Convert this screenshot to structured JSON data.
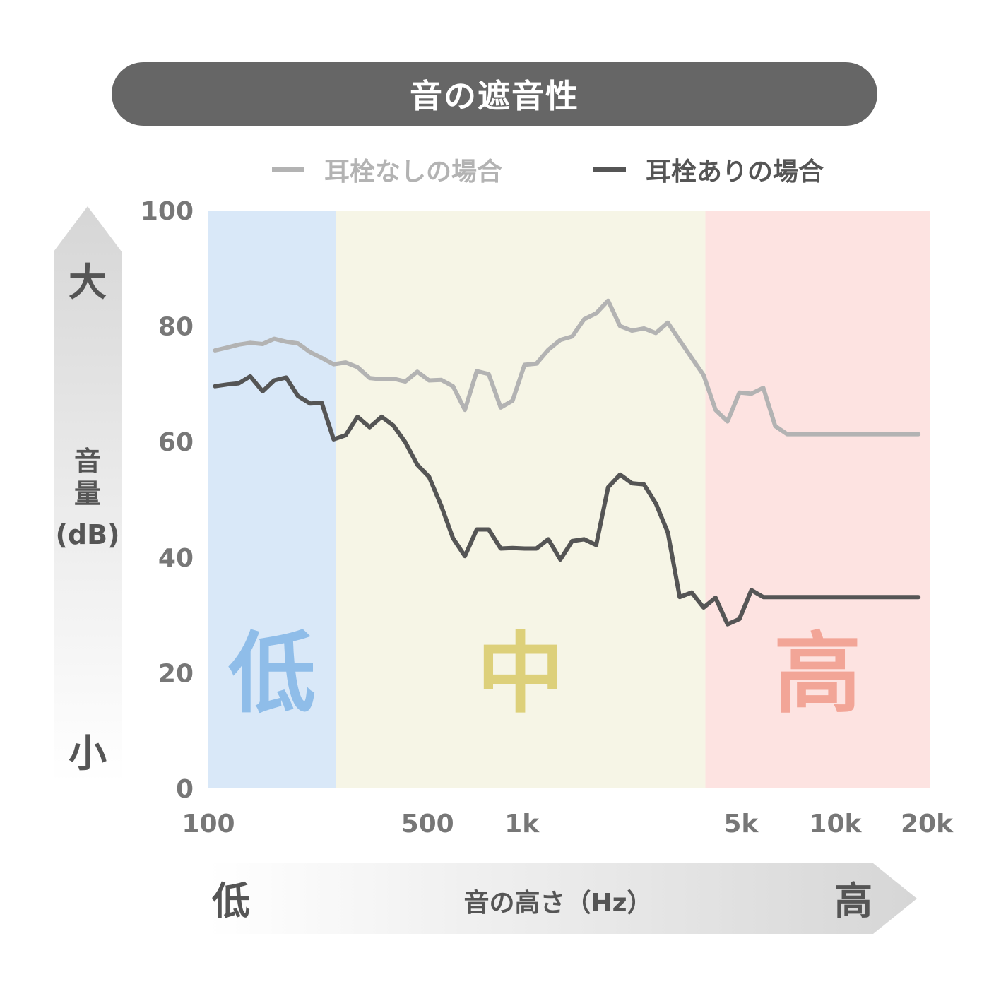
{
  "title": "音の遮音性",
  "colors": {
    "without": "#b3b3b3",
    "with": "#555555",
    "band_low": "#d9e8f8",
    "band_mid": "#f6f5e6",
    "band_high": "#fde3e1",
    "label_low": "#8fbde9",
    "label_mid": "#ddd07a",
    "label_high": "#f2a597"
  },
  "chart_data": {
    "type": "line",
    "title": "音の遮音性",
    "xscale": "log",
    "xlim": [
      100,
      20000
    ],
    "ylim": [
      0,
      100
    ],
    "xticks": [
      {
        "value": 100,
        "label": "100"
      },
      {
        "value": 500,
        "label": "500"
      },
      {
        "value": 1000,
        "label": "1k"
      },
      {
        "value": 5000,
        "label": "5k"
      },
      {
        "value": 10000,
        "label": "10k"
      },
      {
        "value": 20000,
        "label": "20k"
      }
    ],
    "yticks": [
      {
        "value": 0,
        "label": "0"
      },
      {
        "value": 20,
        "label": "20"
      },
      {
        "value": 40,
        "label": "40"
      },
      {
        "value": 60,
        "label": "60"
      },
      {
        "value": 80,
        "label": "80"
      },
      {
        "value": 100,
        "label": "100"
      }
    ],
    "ylabel": "音量(dB)",
    "ylabel_lines": [
      "音",
      "量",
      "(dB)"
    ],
    "y_high": "大",
    "y_low": "小",
    "xlabel": "音の高さ（Hz）",
    "x_low": "低",
    "x_high": "高",
    "bands": [
      {
        "label": "低",
        "from": 100,
        "to": 255
      },
      {
        "label": "中",
        "from": 255,
        "to": 3850
      },
      {
        "label": "高",
        "from": 3850,
        "to": 20000
      }
    ],
    "grid": false,
    "legend_position": "top",
    "series": [
      {
        "name": "耳栓なしの場合",
        "x": [
          105,
          115,
          125,
          136,
          149,
          162,
          177,
          193,
          211,
          230,
          251,
          274,
          299,
          327,
          357,
          389,
          425,
          464,
          506,
          553,
          603,
          658,
          718,
          784,
          856,
          934,
          1020,
          1113,
          1215,
          1327,
          1448,
          1581,
          1726,
          1884,
          2057,
          2245,
          2451,
          2676,
          2921,
          3189,
          3481,
          3800,
          4149,
          4529,
          4944,
          5397,
          5892,
          6432,
          7022,
          7665,
          8368,
          9135,
          9973,
          10887,
          11885,
          12975,
          14164,
          15463,
          16881,
          18430,
          20120
        ],
        "values": [
          75.8,
          76.3,
          76.8,
          77.1,
          76.9,
          77.8,
          77.3,
          77.0,
          75.5,
          74.5,
          73.4,
          73.7,
          72.9,
          71.0,
          70.8,
          70.9,
          70.4,
          72.1,
          70.6,
          70.7,
          69.6,
          65.5,
          72.2,
          71.7,
          65.9,
          67.1,
          73.3,
          73.5,
          75.9,
          77.6,
          78.2,
          81.2,
          82.2,
          84.4,
          80.0,
          79.2,
          79.6,
          78.8,
          80.6,
          77.5,
          74.5,
          71.5,
          65.5,
          63.5,
          68.5,
          68.3,
          69.3,
          62.7,
          61.3,
          61.3,
          61.3,
          61.3,
          61.3,
          61.3,
          61.3,
          61.3,
          61.3,
          61.3,
          61.3,
          61.3,
          61.3
        ]
      },
      {
        "name": "耳栓ありの場合",
        "x": [
          105,
          115,
          125,
          136,
          149,
          162,
          177,
          193,
          211,
          230,
          251,
          274,
          299,
          327,
          357,
          389,
          425,
          464,
          506,
          553,
          603,
          658,
          718,
          784,
          856,
          934,
          1020,
          1113,
          1215,
          1327,
          1448,
          1581,
          1726,
          1884,
          2057,
          2245,
          2451,
          2676,
          2921,
          3189,
          3481,
          3800,
          4149,
          4529,
          4944,
          5397,
          5892,
          6432,
          7022,
          7665,
          8368,
          9135,
          9973,
          10887,
          11885,
          12975,
          14164,
          15463,
          16881,
          18430,
          20120
        ],
        "values": [
          69.6,
          69.9,
          70.1,
          71.3,
          68.7,
          70.6,
          71.1,
          67.9,
          66.6,
          66.7,
          60.4,
          61.1,
          64.3,
          62.5,
          64.3,
          62.8,
          59.9,
          56.0,
          53.9,
          48.9,
          43.3,
          40.2,
          44.8,
          44.8,
          41.5,
          41.6,
          41.5,
          41.5,
          43.1,
          39.6,
          42.8,
          43.1,
          42.1,
          52.1,
          54.3,
          52.8,
          52.6,
          49.3,
          44.3,
          33.1,
          33.9,
          31.3,
          33.0,
          28.4,
          29.3,
          34.3,
          33.1,
          33.1,
          33.1,
          33.1,
          33.1,
          33.1,
          33.1,
          33.1,
          33.1,
          33.1,
          33.1,
          33.1,
          33.1,
          33.1,
          33.1
        ]
      }
    ]
  }
}
